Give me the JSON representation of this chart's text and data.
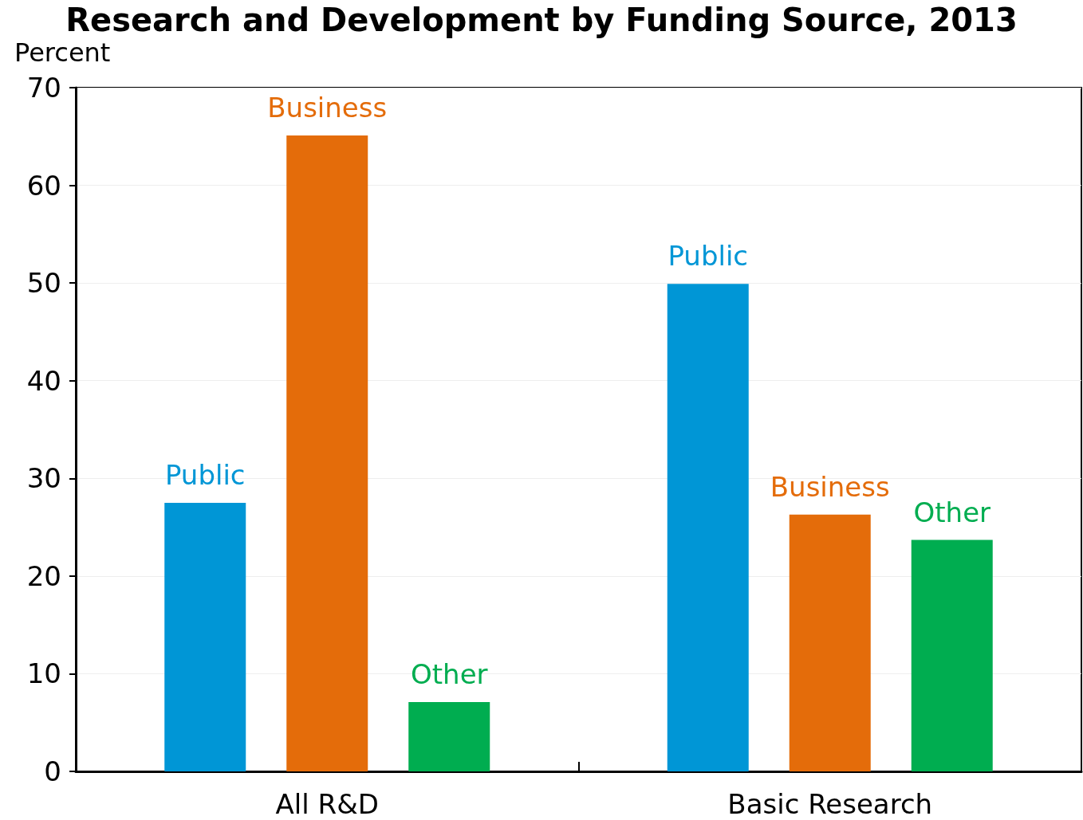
{
  "chart_data": {
    "type": "bar",
    "title": "Research and Development by Funding Source, 2013",
    "ylabel": "Percent",
    "categories": [
      "All R&D",
      "Basic Research"
    ],
    "series": [
      {
        "name": "Public",
        "color": "#0096d6",
        "values": [
          27.5,
          49.9
        ]
      },
      {
        "name": "Business",
        "color": "#e46c0a",
        "values": [
          65.1,
          26.3
        ]
      },
      {
        "name": "Other",
        "color": "#00ad50",
        "values": [
          7.1,
          23.7
        ]
      }
    ],
    "ylim": [
      0,
      70
    ],
    "yticks": [
      0,
      10,
      20,
      30,
      40,
      50,
      60,
      70
    ],
    "grid": "y",
    "legend": false
  }
}
